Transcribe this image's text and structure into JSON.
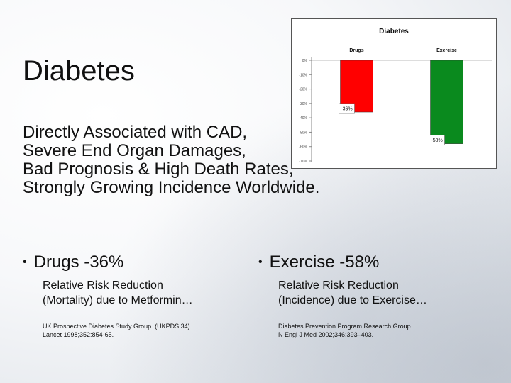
{
  "slide": {
    "title": "Diabetes",
    "intro_lines": [
      "Directly Associated with CAD,",
      "Severe End Organ Damages,",
      "Bad Prognosis & High Death Rates,",
      "Strongly Growing Incidence Worldwide."
    ],
    "bullets": [
      {
        "bullet": "•",
        "heading": "Drugs -36%",
        "sub_lines": [
          "Relative Risk Reduction",
          "(Mortality) due to Metformin…"
        ],
        "cite_lines": [
          "UK Prospective Diabetes Study Group. (UKPDS 34).",
          "Lancet 1998;352:854-65."
        ]
      },
      {
        "bullet": "•",
        "heading": "Exercise -58%",
        "sub_lines": [
          "Relative Risk Reduction",
          "(Incidence) due to Exercise…"
        ],
        "cite_lines": [
          "Diabetes Prevention Program Research Group.",
          "N Engl J Med 2002;346:393–403."
        ]
      }
    ]
  },
  "chart_data": {
    "type": "bar",
    "title": "Diabetes",
    "categories": [
      "Drugs",
      "Exercise"
    ],
    "values": [
      -36,
      -58
    ],
    "data_labels": [
      "-36%",
      "-58%"
    ],
    "colors": [
      "#ff0000",
      "#0a8a1e"
    ],
    "ylim": [
      -70,
      0
    ],
    "yticks": [
      "0%",
      "-10%",
      "-20%",
      "-30%",
      "-40%",
      "-50%",
      "-60%",
      "-70%"
    ],
    "grid": false,
    "legend": "none"
  }
}
